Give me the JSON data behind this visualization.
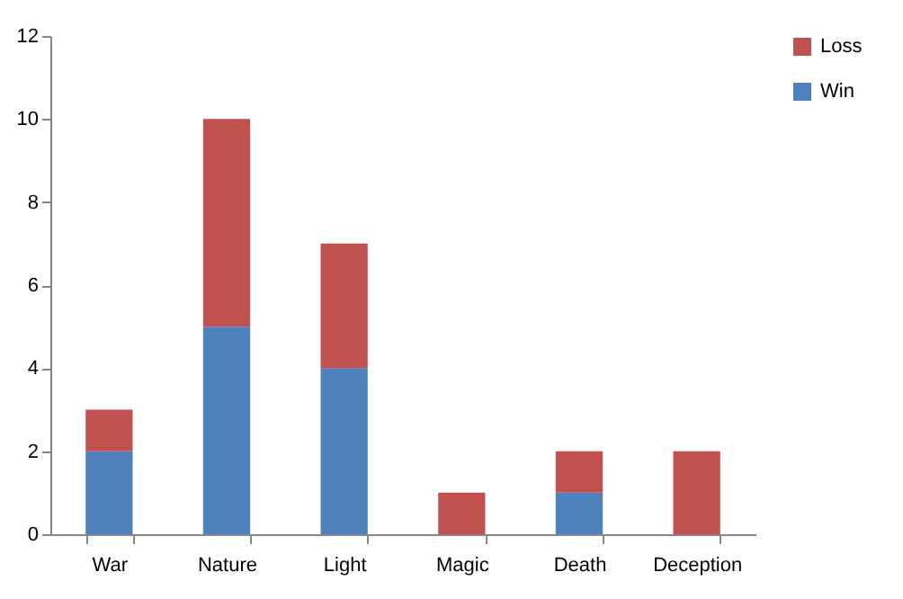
{
  "chart_data": {
    "type": "bar",
    "stacked": true,
    "categories": [
      "War",
      "Nature",
      "Light",
      "Magic",
      "Death",
      "Deception"
    ],
    "series": [
      {
        "name": "Win",
        "color": "#4f81bd",
        "values": [
          2,
          5,
          4,
          0,
          1,
          0
        ]
      },
      {
        "name": "Loss",
        "color": "#c0504d",
        "values": [
          1,
          5,
          3,
          1,
          1,
          2
        ]
      }
    ],
    "ylim": [
      0,
      12
    ],
    "yticks": [
      0,
      2,
      4,
      6,
      8,
      10,
      12
    ],
    "grid": false,
    "legend": "right"
  }
}
